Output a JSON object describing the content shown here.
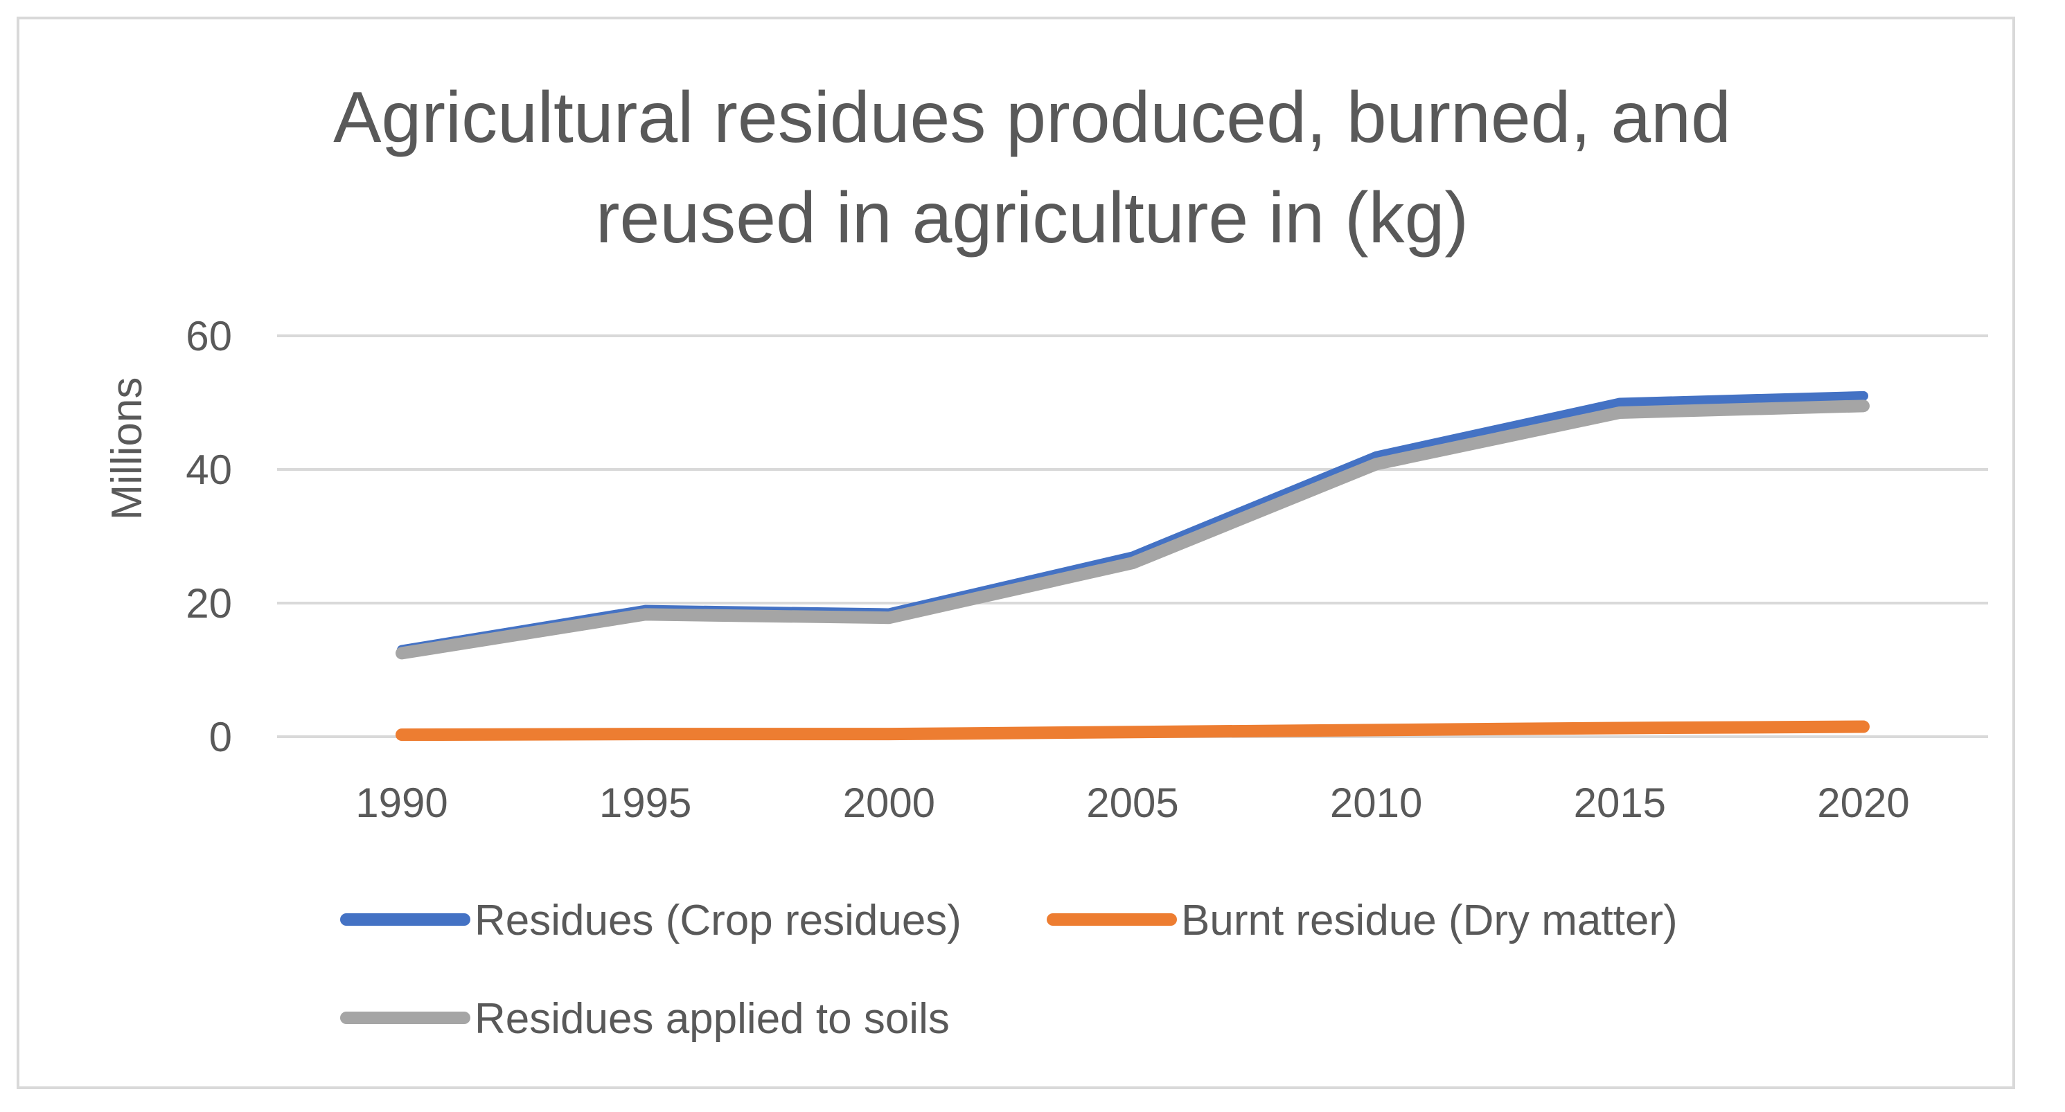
{
  "chart_data": {
    "type": "line",
    "title_lines": [
      "Agricultural residues produced, burned, and",
      "reused in agriculture in (kg)"
    ],
    "ylabel": "Millions",
    "xlabel": "",
    "categories": [
      "1990",
      "1995",
      "2000",
      "2005",
      "2010",
      "2015",
      "2020"
    ],
    "ylim": [
      0,
      60
    ],
    "yticks": [
      0,
      20,
      40,
      60
    ],
    "grid": true,
    "legend_position": "bottom",
    "series": [
      {
        "name": "Residues (Crop residues)",
        "color": "#4472c4",
        "values": [
          13.0,
          19.0,
          18.5,
          27.0,
          42.0,
          50.0,
          51.0
        ]
      },
      {
        "name": "Burnt residue (Dry matter)",
        "color": "#ed7d31",
        "values": [
          0.3,
          0.4,
          0.4,
          0.7,
          1.0,
          1.3,
          1.5
        ]
      },
      {
        "name": "Residues applied to soils",
        "color": "#a5a5a5",
        "values": [
          12.5,
          18.3,
          17.8,
          26.0,
          40.8,
          48.5,
          49.5
        ]
      }
    ]
  }
}
